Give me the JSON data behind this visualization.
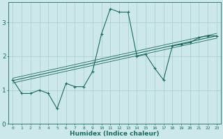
{
  "xlabel": "Humidex (Indice chaleur)",
  "ylabel": "",
  "x_data": [
    0,
    1,
    2,
    3,
    4,
    5,
    6,
    7,
    8,
    9,
    10,
    11,
    12,
    13,
    14,
    15,
    16,
    17,
    18,
    19,
    20,
    21,
    22,
    23
  ],
  "y_data": [
    1.3,
    0.9,
    0.9,
    1.0,
    0.9,
    0.45,
    1.2,
    1.1,
    1.1,
    1.55,
    2.65,
    3.4,
    3.3,
    3.3,
    2.0,
    2.05,
    1.65,
    1.3,
    2.3,
    2.35,
    2.4,
    2.55,
    2.6,
    2.6
  ],
  "trend_y_start": 1.28,
  "trend_y_end": 2.6,
  "line_color": "#1a6b5e",
  "bg_color": "#cce8ea",
  "grid_color": "#a8ccce",
  "ylim": [
    0,
    3.6
  ],
  "xlim": [
    -0.5,
    23.5
  ],
  "yticks": [
    0,
    1,
    2,
    3
  ],
  "xticks": [
    0,
    1,
    2,
    3,
    4,
    5,
    6,
    7,
    8,
    9,
    10,
    11,
    12,
    13,
    14,
    15,
    16,
    17,
    18,
    19,
    20,
    21,
    22,
    23
  ]
}
